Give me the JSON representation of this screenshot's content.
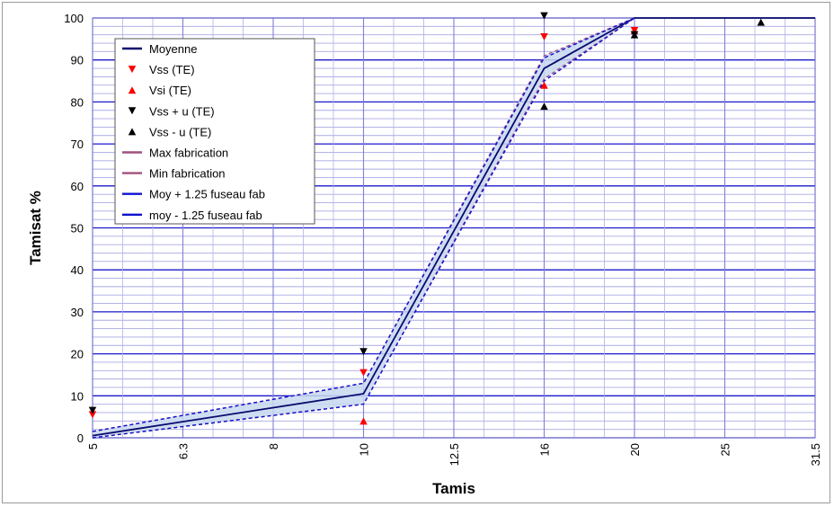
{
  "chart_data": {
    "type": "line",
    "xlabel": "Tamis",
    "ylabel": "Tamisat %",
    "x_categories": [
      "5",
      "6.3",
      "8",
      "10",
      "12.5",
      "16",
      "20",
      "25",
      "31.5"
    ],
    "y_ticks": [
      0,
      10,
      20,
      30,
      40,
      50,
      60,
      70,
      80,
      90,
      100
    ],
    "ylim": [
      0,
      100
    ],
    "grid": true,
    "legend_position": "top-left",
    "colors": {
      "mean": "#0a0a6e",
      "fab": "#a05080",
      "fuseau": "#1010d0",
      "red_marker": "#ff0000",
      "black_marker": "#000000",
      "band_fill": "#c8d8f0"
    },
    "series": [
      {
        "name": "Moyenne",
        "kind": "line",
        "points": [
          [
            0,
            0.5
          ],
          [
            3,
            10.5
          ],
          [
            5,
            88
          ],
          [
            6,
            100
          ],
          [
            8,
            100
          ]
        ]
      },
      {
        "name": "Vss (TE)",
        "kind": "marker-down-red",
        "points": [
          [
            0,
            5.5
          ],
          [
            3,
            15.5
          ],
          [
            5,
            95.5
          ],
          [
            6,
            97
          ]
        ]
      },
      {
        "name": "Vsi (TE)",
        "kind": "marker-up-red",
        "points": [
          [
            3,
            4
          ],
          [
            5,
            84
          ],
          [
            6,
            97
          ]
        ]
      },
      {
        "name": "Vss + u (TE)",
        "kind": "marker-down-black",
        "points": [
          [
            0,
            6.5
          ],
          [
            3,
            20.5
          ],
          [
            5,
            100.5
          ],
          [
            6,
            96
          ]
        ]
      },
      {
        "name": "Vss - u (TE)",
        "kind": "marker-up-black",
        "points": [
          [
            5,
            79
          ],
          [
            6,
            96
          ],
          [
            7.4,
            99
          ]
        ]
      },
      {
        "name": "Max fabrication",
        "kind": "line",
        "points": [
          [
            0,
            1.5
          ],
          [
            3,
            13
          ],
          [
            5,
            91
          ],
          [
            6,
            100
          ]
        ]
      },
      {
        "name": "Min fabrication",
        "kind": "line",
        "points": [
          [
            0,
            0
          ],
          [
            3,
            8
          ],
          [
            5,
            85.5
          ],
          [
            6,
            100
          ]
        ]
      },
      {
        "name": "Moy + 1.25 fuseau fab",
        "kind": "line",
        "points": [
          [
            0,
            1.5
          ],
          [
            3,
            13
          ],
          [
            5,
            90.5
          ],
          [
            6,
            100
          ]
        ]
      },
      {
        "name": "moy - 1.25 fuseau fab",
        "kind": "line",
        "points": [
          [
            0,
            0
          ],
          [
            3,
            8
          ],
          [
            5,
            85
          ],
          [
            6,
            100
          ]
        ]
      }
    ]
  }
}
